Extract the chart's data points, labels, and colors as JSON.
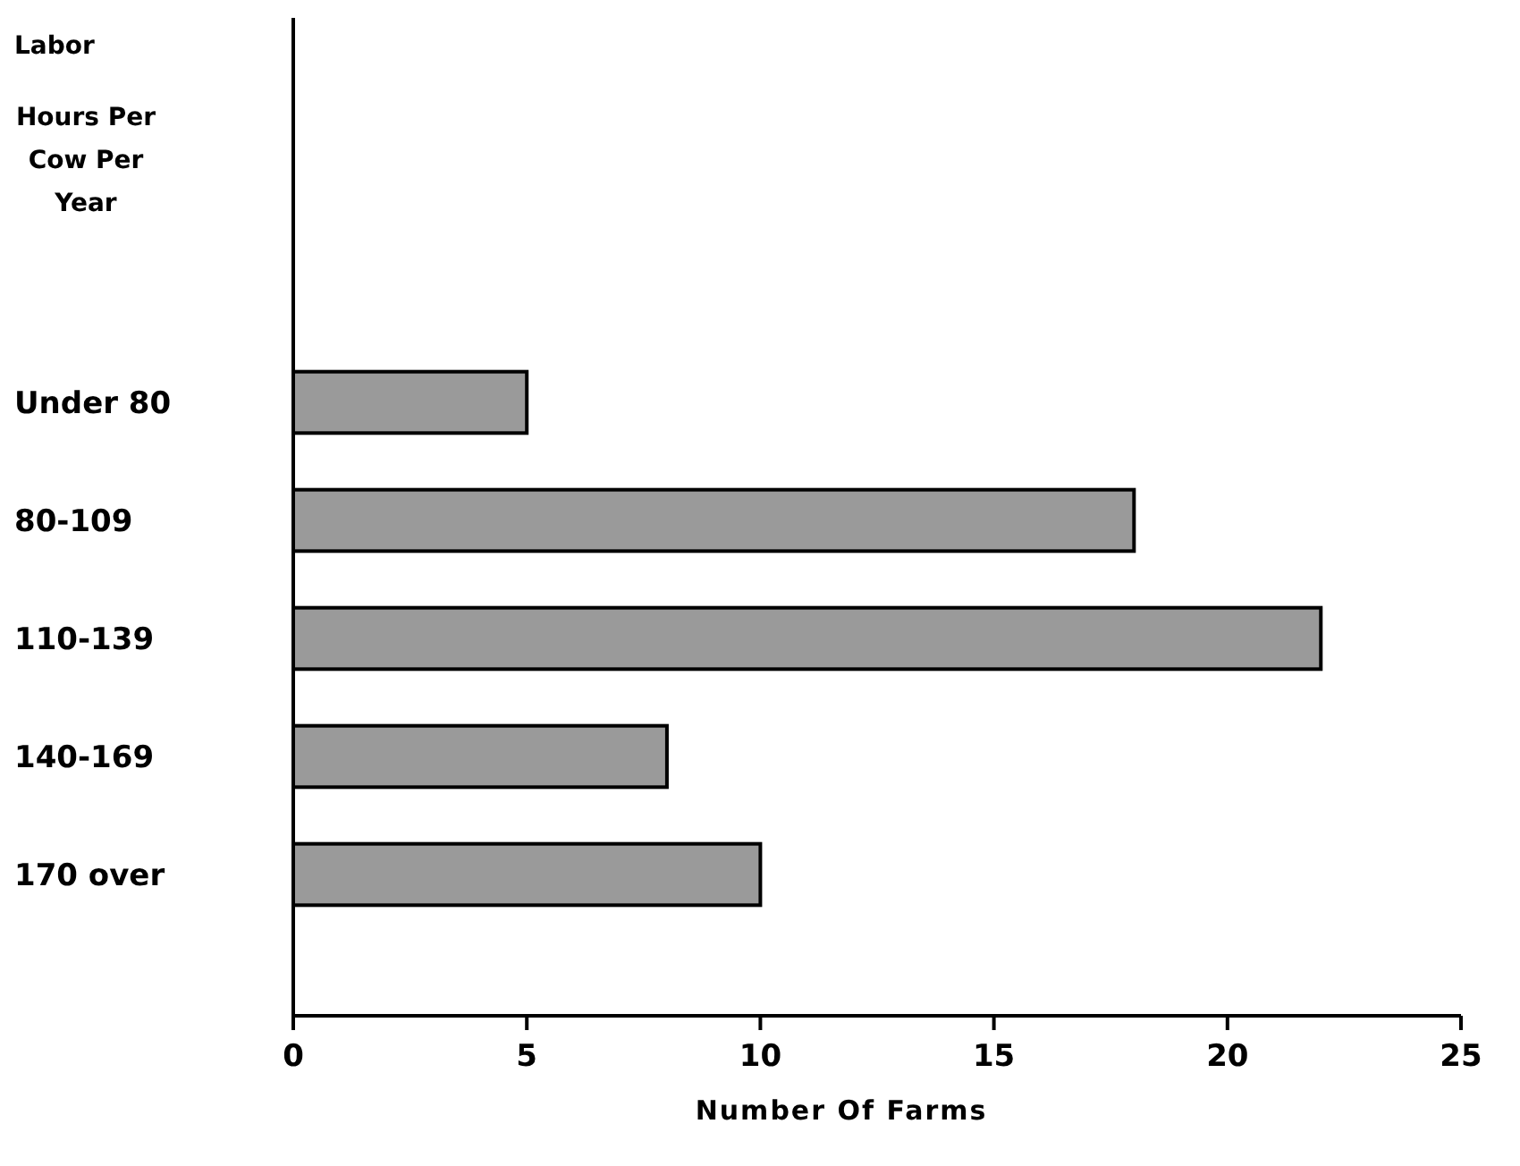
{
  "chart_data": {
    "type": "bar",
    "orientation": "horizontal",
    "xlabel": "Number Of Farms",
    "ylabel": "Labor\nHours Per\nCow Per\nYear",
    "categories": [
      "Under 80",
      "80-109",
      "110-139",
      "140-169",
      "170 over"
    ],
    "values": [
      5,
      18,
      22,
      8,
      10
    ],
    "color": "#9a9a9a",
    "xlim": [
      0,
      25
    ],
    "xticks": [
      0,
      5,
      10,
      15,
      20,
      25
    ],
    "grid": false
  }
}
